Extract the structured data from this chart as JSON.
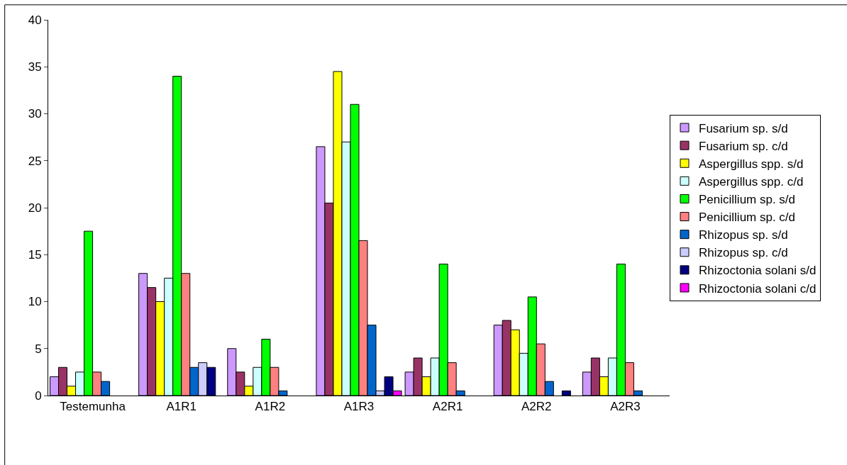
{
  "chart_data": {
    "type": "bar",
    "categories": [
      "Testemunha",
      "A1R1",
      "A1R2",
      "A1R3",
      "A2R1",
      "A2R2",
      "A2R3"
    ],
    "ylim": [
      0,
      40
    ],
    "yticks": [
      0,
      5,
      10,
      15,
      20,
      25,
      30,
      35,
      40
    ],
    "grid": false,
    "legend": "right",
    "series": [
      {
        "name": "Fusarium sp. s/d",
        "color": "#cc99ff",
        "values": [
          2,
          13,
          5,
          26.5,
          2.5,
          7.5,
          2.5
        ]
      },
      {
        "name": "Fusarium sp. c/d",
        "color": "#993366",
        "values": [
          3,
          11.5,
          2.5,
          20.5,
          4,
          8,
          4
        ]
      },
      {
        "name": "Aspergillus spp. s/d",
        "color": "#ffff00",
        "values": [
          1,
          10,
          1,
          34.5,
          2,
          7,
          2
        ]
      },
      {
        "name": "Aspergillus spp. c/d",
        "color": "#ccffff",
        "values": [
          2.5,
          12.5,
          3,
          27,
          4,
          4.5,
          4
        ]
      },
      {
        "name": "Penicillium sp. s/d",
        "color": "#00ff00",
        "values": [
          17.5,
          34,
          6,
          31,
          14,
          10.5,
          14
        ]
      },
      {
        "name": "Penicillium sp. c/d",
        "color": "#ff8080",
        "values": [
          2.5,
          13,
          3,
          16.5,
          3.5,
          5.5,
          3.5
        ]
      },
      {
        "name": "Rhizopus sp. s/d",
        "color": "#0066cc",
        "values": [
          1.5,
          3,
          0.5,
          7.5,
          0.5,
          1.5,
          0.5
        ]
      },
      {
        "name": "Rhizopus sp. c/d",
        "color": "#ccccff",
        "values": [
          null,
          3.5,
          null,
          0.5,
          null,
          null,
          null
        ]
      },
      {
        "name": "Rhizoctonia solani s/d",
        "color": "#000080",
        "values": [
          null,
          3,
          null,
          2,
          null,
          0.5,
          null
        ]
      },
      {
        "name": "Rhizoctonia solani c/d",
        "color": "#ff00ff",
        "values": [
          null,
          null,
          null,
          0.5,
          null,
          null,
          null
        ]
      }
    ]
  }
}
